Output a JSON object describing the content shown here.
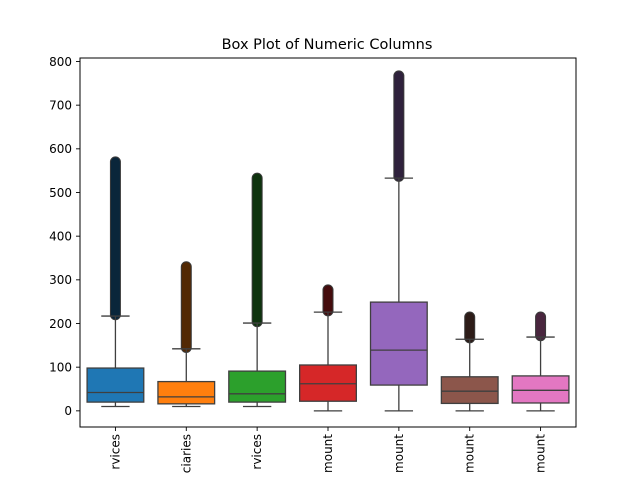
{
  "chart_data": {
    "type": "box",
    "title": "Box Plot of Numeric Columns",
    "xlabel": "",
    "ylabel": "",
    "ylim": [
      -37,
      808
    ],
    "yticks": [
      0,
      100,
      200,
      300,
      400,
      500,
      600,
      700,
      800
    ],
    "categories": [
      "rvices",
      "ciaries",
      "rvices",
      "mount",
      "mount",
      "mount",
      "mount"
    ],
    "series": [
      {
        "color": "#1f77b4",
        "whisker_low": 10,
        "q1": 20,
        "median": 42,
        "q3": 98,
        "whisker_high": 217,
        "outliers_from": 220,
        "outliers_to": 570
      },
      {
        "color": "#ff7f0e",
        "whisker_low": 10,
        "q1": 16,
        "median": 32,
        "q3": 67,
        "whisker_high": 142,
        "outliers_from": 145,
        "outliers_to": 330
      },
      {
        "color": "#2ca02c",
        "whisker_low": 10,
        "q1": 20,
        "median": 39,
        "q3": 91,
        "whisker_high": 201,
        "outliers_from": 204,
        "outliers_to": 533
      },
      {
        "color": "#d62728",
        "whisker_low": 0,
        "q1": 22,
        "median": 62,
        "q3": 105,
        "whisker_high": 226,
        "outliers_from": 229,
        "outliers_to": 277
      },
      {
        "color": "#9467bd",
        "whisker_low": 0,
        "q1": 59,
        "median": 139,
        "q3": 249,
        "whisker_high": 533,
        "outliers_from": 537,
        "outliers_to": 767
      },
      {
        "color": "#8c564b",
        "whisker_low": 0,
        "q1": 17,
        "median": 45,
        "q3": 78,
        "whisker_high": 164,
        "outliers_from": 167,
        "outliers_to": 215
      },
      {
        "color": "#e377c2",
        "whisker_low": 0,
        "q1": 18,
        "median": 47,
        "q3": 80,
        "whisker_high": 169,
        "outliers_from": 172,
        "outliers_to": 215
      }
    ],
    "grid": false,
    "legend": "none"
  }
}
